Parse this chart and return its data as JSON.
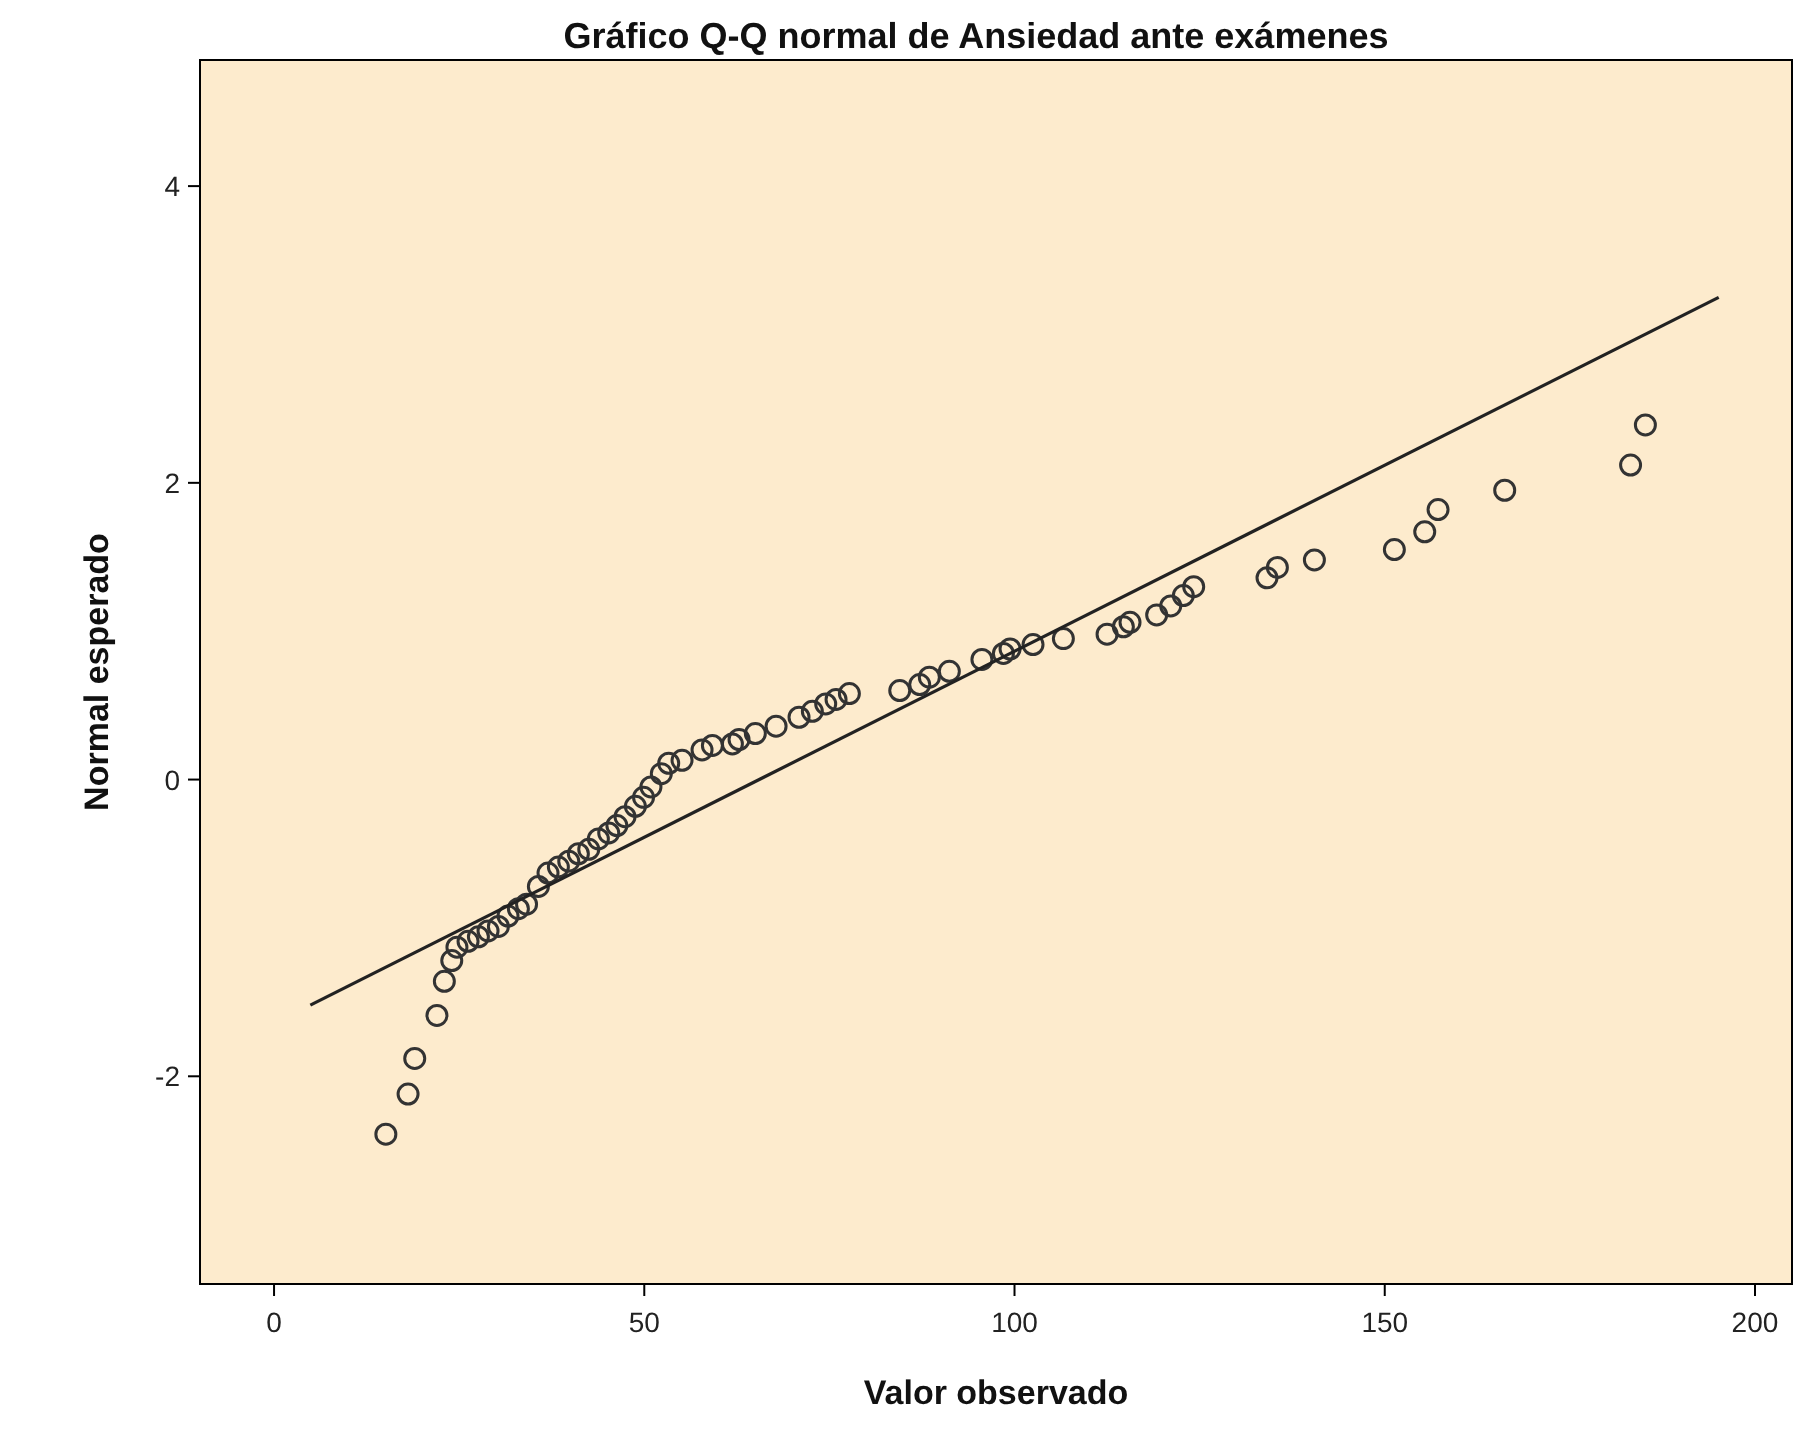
{
  "chart_data": {
    "type": "scatter",
    "title": "Gráfico Q-Q normal de Ansiedad ante exámenes",
    "xlabel": "Valor observado",
    "ylabel": "Normal esperado",
    "xlim": [
      -10,
      205
    ],
    "xticks": [
      0,
      50,
      100,
      150,
      200
    ],
    "ylim": [
      -3.4,
      4.85
    ],
    "yticks": [
      -2,
      0,
      2,
      4
    ],
    "grid": false,
    "marker": "circle",
    "series": [
      {
        "color": "#333333",
        "x": [
          15.1,
          18.1,
          19.0,
          22.0,
          23.0,
          24.0,
          24.7,
          26.2,
          27.6,
          28.9,
          30.3,
          31.6,
          33.0,
          34.1,
          35.7,
          37.0,
          38.4,
          39.8,
          41.1,
          42.5,
          43.8,
          45.2,
          46.3,
          47.4,
          48.8,
          49.9,
          50.9,
          52.3,
          53.3,
          55.1,
          57.8,
          59.2,
          61.9,
          62.8,
          65.0,
          67.8,
          70.9,
          72.7,
          74.5,
          75.9,
          77.7,
          84.5,
          87.2,
          88.5,
          91.2,
          95.6,
          98.5,
          99.4,
          102.5,
          106.6,
          112.5,
          114.7,
          115.6,
          119.2,
          121.1,
          122.8,
          124.2,
          134.1,
          135.5,
          140.5,
          151.3,
          155.4,
          157.2,
          166.2,
          183.2,
          185.2
        ],
        "values": [
          -2.39,
          -2.12,
          -1.88,
          -1.59,
          -1.36,
          -1.22,
          -1.13,
          -1.09,
          -1.06,
          -1.02,
          -0.99,
          -0.92,
          -0.87,
          -0.84,
          -0.72,
          -0.63,
          -0.59,
          -0.55,
          -0.5,
          -0.47,
          -0.4,
          -0.36,
          -0.31,
          -0.25,
          -0.18,
          -0.12,
          -0.05,
          0.04,
          0.11,
          0.13,
          0.2,
          0.23,
          0.24,
          0.27,
          0.31,
          0.36,
          0.42,
          0.46,
          0.51,
          0.54,
          0.58,
          0.6,
          0.64,
          0.69,
          0.73,
          0.81,
          0.85,
          0.88,
          0.91,
          0.95,
          0.98,
          1.03,
          1.06,
          1.11,
          1.17,
          1.24,
          1.3,
          1.36,
          1.43,
          1.48,
          1.55,
          1.67,
          1.82,
          1.95,
          2.12,
          2.39
        ]
      },
      {
        "type": "line",
        "marker": "none",
        "color": "#222222",
        "x": [
          4.9,
          195.1
        ],
        "values": [
          -1.52,
          3.25
        ]
      }
    ]
  }
}
